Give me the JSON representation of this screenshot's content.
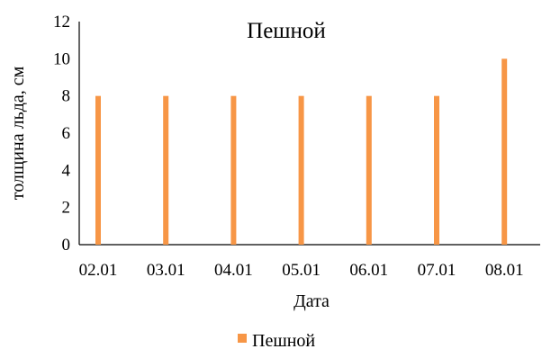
{
  "chart_data": {
    "type": "bar",
    "title": "Пешной",
    "xlabel": "Дата",
    "ylabel": "толщина льда, см",
    "categories": [
      "02.01",
      "03.01",
      "04.01",
      "05.01",
      "06.01",
      "07.01",
      "08.01"
    ],
    "series": [
      {
        "name": "Пешной",
        "values": [
          8,
          8,
          8,
          8,
          8,
          8,
          10
        ],
        "color": "#F79646"
      }
    ],
    "ylim": [
      0,
      12
    ],
    "yticks": [
      "0",
      "2",
      "4",
      "6",
      "8",
      "10",
      "12"
    ],
    "grid": false,
    "legend_position": "bottom"
  }
}
